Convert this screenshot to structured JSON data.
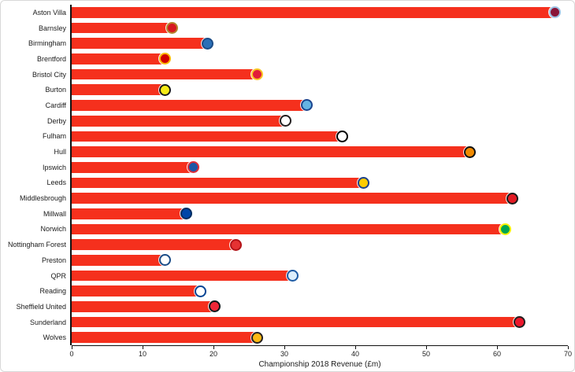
{
  "colors": {
    "bar": "#f5301d",
    "axis": "#111111"
  },
  "chart_data": {
    "type": "bar",
    "orientation": "horizontal",
    "title": "",
    "xlabel": "Championship 2018 Revenue (£m)",
    "ylabel": "",
    "xlim": [
      0,
      70
    ],
    "xticks": [
      0,
      10,
      20,
      30,
      40,
      50,
      60,
      70
    ],
    "grid": false,
    "legend": "none",
    "categories": [
      "Aston Villa",
      "Barnsley",
      "Birmingham",
      "Brentford",
      "Bristol City",
      "Burton",
      "Cardiff",
      "Derby",
      "Fulham",
      "Hull",
      "Ipswich",
      "Leeds",
      "Middlesbrough",
      "Millwall",
      "Norwich",
      "Nottingham Forest",
      "Preston",
      "QPR",
      "Reading",
      "Sheffield United",
      "Sunderland",
      "Wolves"
    ],
    "values": [
      68,
      14,
      19,
      13,
      26,
      13,
      33,
      30,
      38,
      56,
      17,
      41,
      62,
      16,
      61,
      23,
      13,
      31,
      18,
      20,
      63,
      26
    ],
    "icons": [
      {
        "name": "aston-villa-crest-icon",
        "bg": "#8a1538",
        "border": "#9cc3e5"
      },
      {
        "name": "barnsley-crest-icon",
        "bg": "#d71920",
        "border": "#b5832b"
      },
      {
        "name": "birmingham-crest-icon",
        "bg": "#2a6fb7",
        "border": "#1b4c87"
      },
      {
        "name": "brentford-crest-icon",
        "bg": "#d20000",
        "border": "#fbb800"
      },
      {
        "name": "bristol-city-crest-icon",
        "bg": "#e21d38",
        "border": "#f9c623"
      },
      {
        "name": "burton-crest-icon",
        "bg": "#f6eb16",
        "border": "#1a1a1a"
      },
      {
        "name": "cardiff-crest-icon",
        "bg": "#66b4e3",
        "border": "#1b458f"
      },
      {
        "name": "derby-crest-icon",
        "bg": "#ffffff",
        "border": "#231f20"
      },
      {
        "name": "fulham-crest-icon",
        "bg": "#ffffff",
        "border": "#000000"
      },
      {
        "name": "hull-crest-icon",
        "bg": "#f18a00",
        "border": "#101010"
      },
      {
        "name": "ipswich-crest-icon",
        "bg": "#1d57a5",
        "border": "#de2c37"
      },
      {
        "name": "leeds-crest-icon",
        "bg": "#ffcd00",
        "border": "#1d428a"
      },
      {
        "name": "middlesbrough-crest-icon",
        "bg": "#e21a23",
        "border": "#1a1a1a"
      },
      {
        "name": "millwall-crest-icon",
        "bg": "#0046a8",
        "border": "#002d62"
      },
      {
        "name": "norwich-crest-icon",
        "bg": "#00a651",
        "border": "#fff200"
      },
      {
        "name": "nottingham-forest-crest-icon",
        "bg": "#e53233",
        "border": "#b31217"
      },
      {
        "name": "preston-crest-icon",
        "bg": "#ffffff",
        "border": "#1b4c87"
      },
      {
        "name": "qpr-crest-icon",
        "bg": "#dceefc",
        "border": "#1d5ba4"
      },
      {
        "name": "reading-crest-icon",
        "bg": "#ffffff",
        "border": "#004494"
      },
      {
        "name": "sheffield-united-crest-icon",
        "bg": "#ee2737",
        "border": "#0d171a"
      },
      {
        "name": "sunderland-crest-icon",
        "bg": "#eb172b",
        "border": "#211e1f"
      },
      {
        "name": "wolves-crest-icon",
        "bg": "#fdb913",
        "border": "#231f20"
      }
    ]
  }
}
